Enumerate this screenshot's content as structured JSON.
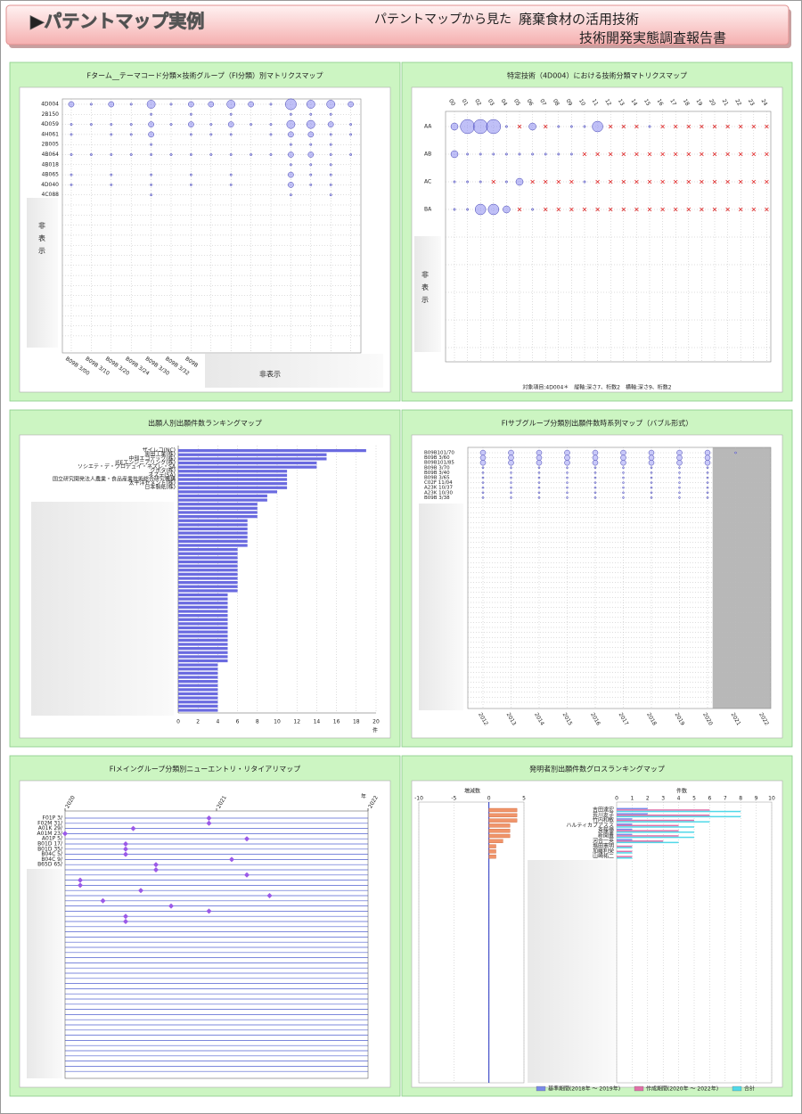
{
  "header": {
    "title": "▶パテントマップ実例",
    "subtitle_red": "パテントマップから見た",
    "subtitle_1": "廃棄食材の活用技術",
    "subtitle_2": "技術開発実態調査報告書"
  },
  "chart_data": [
    {
      "type": "bubble-matrix",
      "title": "Fターム__テーマコード分類×技術グループ（FI分類）別マトリクスマップ",
      "hidden_label": "非表示",
      "color": "#8c8cf0",
      "rows": [
        "4D004",
        "2B150",
        "4D059",
        "4H061",
        "2B005",
        "4B064",
        "4B018",
        "4B065",
        "4D040",
        "4C088"
      ],
      "columns": [
        "B09B 3/00",
        "B09B 3/10",
        "B09B 3/20",
        "B09B 3/24",
        "B09B 3/30",
        "B09B 3/32",
        "B09B",
        null,
        null,
        null,
        null,
        null,
        null,
        null,
        null
      ],
      "values": [
        [
          2,
          1,
          2,
          1,
          3,
          1,
          2,
          2,
          3,
          2,
          1,
          4,
          3,
          3,
          2
        ],
        [
          0,
          0,
          0,
          0,
          1,
          0,
          1,
          0,
          1,
          0,
          0,
          1,
          1,
          1,
          0
        ],
        [
          1,
          1,
          1,
          1,
          2,
          1,
          2,
          1,
          2,
          1,
          1,
          3,
          3,
          2,
          1
        ],
        [
          1,
          0,
          1,
          1,
          2,
          0,
          1,
          1,
          1,
          0,
          1,
          2,
          2,
          1,
          1
        ],
        [
          0,
          0,
          0,
          0,
          1,
          0,
          0,
          0,
          0,
          0,
          0,
          1,
          1,
          1,
          0
        ],
        [
          1,
          1,
          1,
          1,
          1,
          1,
          1,
          1,
          1,
          1,
          1,
          2,
          2,
          1,
          1
        ],
        [
          0,
          0,
          0,
          0,
          0,
          0,
          0,
          0,
          0,
          0,
          0,
          1,
          1,
          1,
          0
        ],
        [
          1,
          0,
          1,
          0,
          1,
          0,
          1,
          0,
          1,
          0,
          0,
          2,
          1,
          1,
          0
        ],
        [
          1,
          0,
          1,
          0,
          1,
          0,
          1,
          0,
          1,
          0,
          0,
          2,
          1,
          1,
          0
        ],
        [
          0,
          0,
          0,
          0,
          1,
          0,
          0,
          0,
          0,
          0,
          0,
          1,
          0,
          1,
          0
        ]
      ]
    },
    {
      "type": "bubble-matrix",
      "title": "特定技術（4D004）における技術分類マトリクスマップ",
      "hidden_label": "非表示",
      "color": "#8c8cf0",
      "note": "対象項目:4D004＊　縦軸:深さ7、桁数2　横軸:深さ9、桁数2",
      "rows": [
        "AA",
        "AB",
        "AC",
        "BA"
      ],
      "columns": [
        "00",
        "01",
        "02",
        "03",
        "04",
        "05",
        "06",
        "07",
        "08",
        "09",
        "10",
        "11",
        "12",
        "13",
        "14",
        "15",
        "16",
        "17",
        "18",
        "19",
        "20",
        "21",
        "22",
        "23",
        "24"
      ],
      "values": [
        [
          2,
          4,
          4,
          4,
          1,
          0,
          2,
          0,
          1,
          1,
          1,
          3,
          0,
          0,
          0,
          1,
          0,
          0,
          0,
          0,
          0,
          0,
          0,
          0,
          0
        ],
        [
          2,
          1,
          1,
          1,
          1,
          1,
          1,
          1,
          1,
          1,
          0,
          0,
          0,
          0,
          0,
          0,
          0,
          0,
          0,
          0,
          0,
          0,
          0,
          0,
          0
        ],
        [
          1,
          1,
          1,
          0,
          1,
          2,
          0,
          0,
          0,
          0,
          1,
          0,
          0,
          0,
          0,
          0,
          0,
          0,
          0,
          0,
          0,
          0,
          0,
          0,
          0
        ],
        [
          1,
          1,
          3,
          3,
          2,
          0,
          1,
          0,
          0,
          0,
          0,
          0,
          0,
          0,
          0,
          0,
          0,
          0,
          0,
          0,
          0,
          0,
          0,
          0,
          0
        ]
      ]
    },
    {
      "type": "barh",
      "title": "出願人別出願件数ランキングマップ",
      "color": "#6a6ae0",
      "xlabel": "件",
      "xlim": [
        0,
        20
      ],
      "xticks": [
        0,
        2,
        4,
        6,
        8,
        10,
        12,
        14,
        16,
        18,
        20
      ],
      "categories": [
        "ザイレコ(NC)",
        "奥田工業(株)",
        "中部エコテック(株)",
        "JFEエンジニアリング(株)",
        "ソシエテ・デ・プロデュイ・ネスレ・SA",
        "クボタ(株)",
        "ネステ(SA)",
        "国立研究開発法人農業・食品産業技術総合研究機構",
        "太平洋セメント(株)",
        "日本製紙(株)",
        null,
        null,
        null,
        null,
        null,
        null,
        null,
        null,
        null,
        null,
        null,
        null,
        null,
        null,
        null,
        null,
        null,
        null,
        null,
        null,
        null,
        null,
        null,
        null,
        null,
        null,
        null,
        null,
        null,
        null,
        null,
        null,
        null,
        null,
        null,
        null,
        null,
        null,
        null,
        null,
        null,
        null,
        null,
        null,
        null,
        null,
        null,
        null,
        null,
        null,
        null,
        null,
        null,
        null
      ],
      "values": [
        19,
        15,
        15,
        14,
        14,
        11,
        11,
        11,
        11,
        11,
        10,
        9,
        9,
        8,
        8,
        8,
        8,
        7,
        7,
        7,
        7,
        7,
        7,
        7,
        6,
        6,
        6,
        6,
        6,
        6,
        6,
        6,
        6,
        6,
        6,
        5,
        5,
        5,
        5,
        5,
        5,
        5,
        5,
        5,
        5,
        5,
        5,
        5,
        5,
        5,
        5,
        5,
        4,
        4,
        4,
        4,
        4,
        4,
        4,
        4,
        4,
        4,
        4,
        4
      ]
    },
    {
      "type": "bubble-timeline",
      "title": "FIサブグループ分類別出願件数時系列マップ（バブル形式）",
      "color": "#8c8cf0",
      "shaded": [
        "2021",
        "2022"
      ],
      "rows": [
        "B09B101/70",
        "B09B 3/60",
        "B09B101/85",
        "B09B 3/70",
        "B09B 3/40",
        "B09B 3/65",
        "C02F 11/04",
        "A23K 10/37",
        "A23K 10/30",
        "B09B 3/38"
      ],
      "columns": [
        "2012",
        "2013",
        "2014",
        "2015",
        "2016",
        "2017",
        "2018",
        "2019",
        "2020",
        "2021",
        "2022"
      ],
      "values": [
        [
          2,
          2,
          2,
          2,
          2,
          2,
          2,
          2,
          2,
          1,
          0
        ],
        [
          2,
          2,
          2,
          2,
          2,
          2,
          2,
          2,
          2,
          0,
          0
        ],
        [
          2,
          2,
          2,
          2,
          2,
          2,
          2,
          2,
          2,
          0,
          0
        ],
        [
          1,
          1,
          1,
          1,
          1,
          1,
          1,
          1,
          1,
          0,
          0
        ],
        [
          1,
          1,
          1,
          1,
          1,
          1,
          1,
          1,
          1,
          0,
          0
        ],
        [
          1,
          1,
          1,
          1,
          1,
          1,
          1,
          1,
          1,
          0,
          0
        ],
        [
          1,
          1,
          1,
          1,
          1,
          1,
          1,
          1,
          1,
          0,
          0
        ],
        [
          1,
          1,
          1,
          1,
          1,
          1,
          1,
          1,
          1,
          0,
          0
        ],
        [
          1,
          1,
          1,
          1,
          1,
          1,
          1,
          1,
          1,
          0,
          0
        ],
        [
          1,
          1,
          1,
          1,
          1,
          1,
          1,
          1,
          1,
          0,
          0
        ]
      ]
    },
    {
      "type": "scatter",
      "title": "FIメイングループ分類別ニューエントリ・リタイアリマップ",
      "color": "#9a5ae8",
      "xlabel": "年",
      "xlim": [
        2020,
        2022
      ],
      "xticks": [
        2020,
        2021,
        2022
      ],
      "categories": [
        "F01P 3/",
        "F02M 31/",
        "A01K 29/",
        "A01M 23/",
        "A01P 5/",
        "B01D 17/",
        "B01D 35/",
        "B04C 5/",
        "B04C 9/",
        "B65D 65/",
        null,
        null,
        null,
        null,
        null,
        null,
        null,
        null,
        null,
        null,
        null
      ],
      "values": [
        2020.95,
        2020.95,
        2020.45,
        2020.0,
        2021.2,
        2020.4,
        2020.4,
        2020.4,
        2021.1,
        2020.6,
        2020.6,
        2021.2,
        2020.1,
        2020.1,
        2020.5,
        2021.35,
        2020.25,
        2020.7,
        2020.95,
        2020.4,
        2020.4
      ]
    },
    {
      "type": "combo",
      "title": "発明者別出願件数グロスランキングマップ",
      "categories": [
        "吉田達宏",
        "荒川友子",
        "竹内和敏",
        "ハルティカプアスス",
        "斎藤優",
        "新開豊",
        "河合一英",
        "塩田憲明",
        "加藤利栄",
        "山崎祐二"
      ],
      "xlabel_change": "増減数",
      "xlim_change": [
        -10,
        5
      ],
      "xticks_change": [
        -10,
        -5,
        0,
        5
      ],
      "change": {
        "color": "#f0946a",
        "values": [
          4,
          4,
          4,
          3,
          3,
          3,
          2,
          1,
          1,
          1
        ]
      },
      "xlabel": "件数",
      "xlim": [
        0,
        10
      ],
      "xticks": [
        0,
        1,
        2,
        3,
        4,
        5,
        6,
        7,
        8,
        9,
        10
      ],
      "series": [
        {
          "name": "基準期間(2018年 〜 2019年)",
          "color": "#7a8ae8",
          "values": [
            2,
            2,
            1,
            1,
            1,
            1,
            1,
            0,
            0,
            0
          ]
        },
        {
          "name": "作成期間(2020年 〜 2022年)",
          "color": "#e070a8",
          "values": [
            6,
            6,
            5,
            4,
            4,
            4,
            3,
            1,
            1,
            1
          ]
        },
        {
          "name": "合計",
          "color": "#50d8e8",
          "values": [
            8,
            8,
            6,
            5,
            5,
            5,
            4,
            1,
            1,
            1
          ]
        }
      ]
    }
  ]
}
